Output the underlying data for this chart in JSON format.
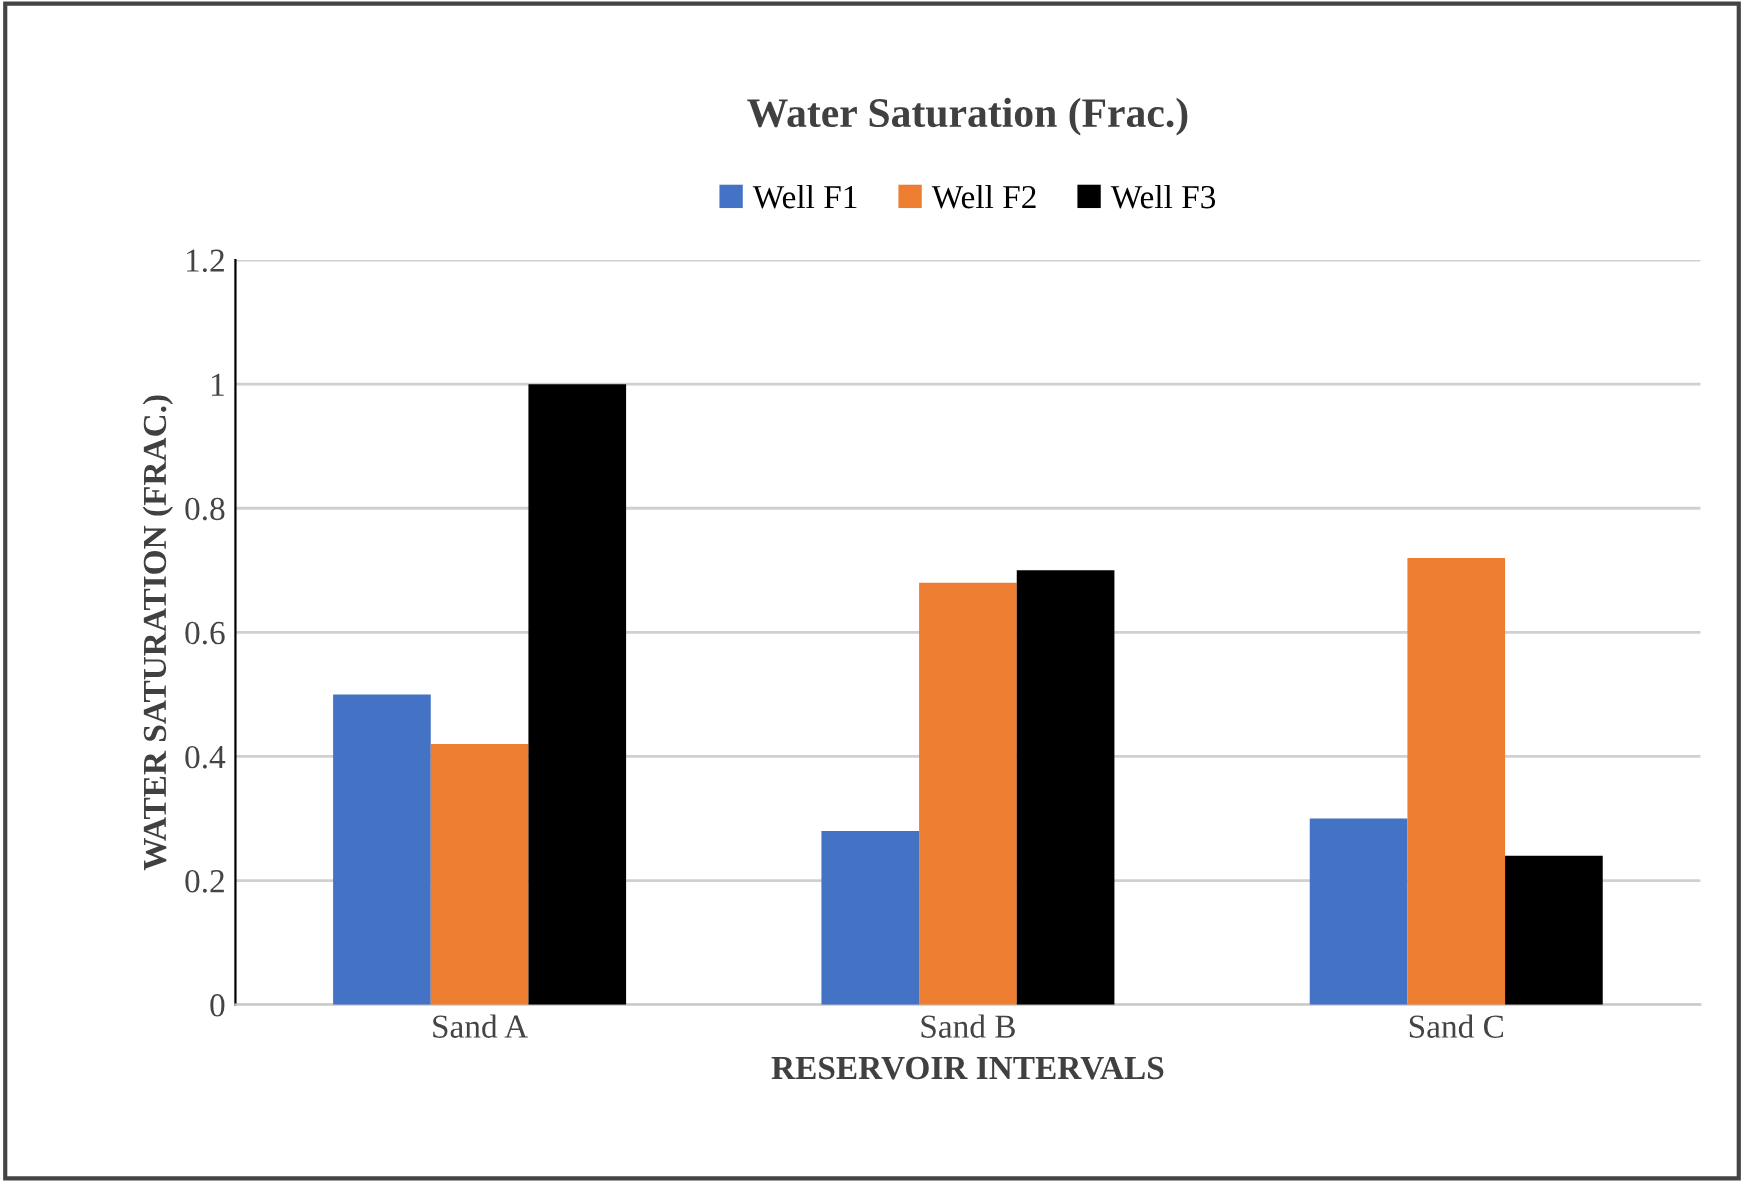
{
  "chart_data": {
    "type": "bar",
    "title": "Water Saturation (Frac.)",
    "xlabel": "RESERVOIR INTERVALS",
    "ylabel": "WATER SATURATION (FRAC.)",
    "categories": [
      "Sand A",
      "Sand B",
      "Sand C"
    ],
    "series": [
      {
        "name": "Well F1",
        "color": "#4472c4",
        "values": [
          0.5,
          0.28,
          0.3
        ]
      },
      {
        "name": "Well F2",
        "color": "#ed7d31",
        "values": [
          0.42,
          0.68,
          0.72
        ]
      },
      {
        "name": "Well F3",
        "color": "#000000",
        "values": [
          1.0,
          0.7,
          0.24
        ]
      }
    ],
    "ylim": [
      0,
      1.2
    ],
    "yticks": [
      0,
      0.2,
      0.4,
      0.6,
      0.8,
      1,
      1.2
    ],
    "grid": "y",
    "legend": "top"
  }
}
